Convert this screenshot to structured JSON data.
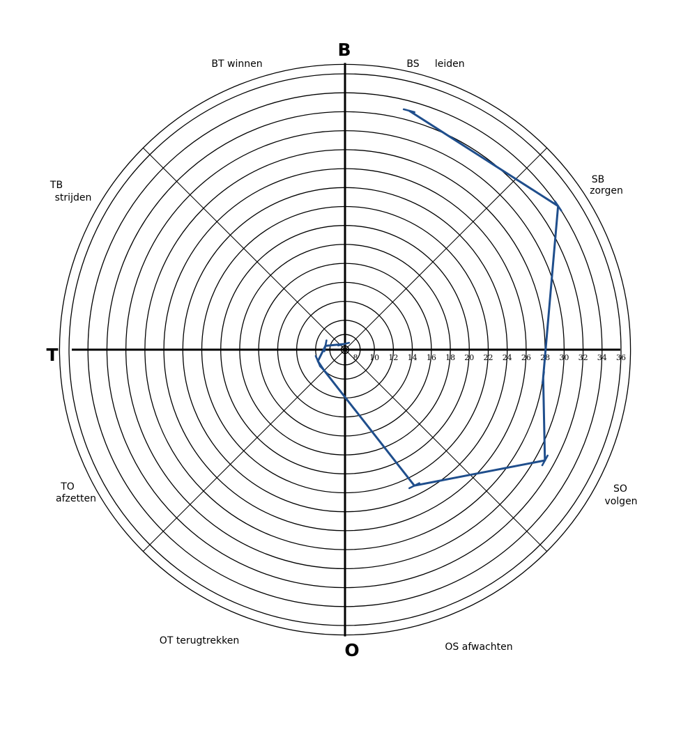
{
  "chart_data": {
    "type": "radar",
    "poles": {
      "top": "B",
      "left": "T",
      "bottom": "O"
    },
    "octant_labels": [
      {
        "id": "BT",
        "lines": [
          "BT winnen"
        ]
      },
      {
        "id": "BS",
        "lines": [
          "BS     leiden"
        ]
      },
      {
        "id": "SB",
        "lines": [
          "SB",
          "zorgen"
        ]
      },
      {
        "id": "SO",
        "lines": [
          "SO",
          "volgen"
        ]
      },
      {
        "id": "OS",
        "lines": [
          "OS afwachten"
        ]
      },
      {
        "id": "OT",
        "lines": [
          "OT terugtrekken"
        ]
      },
      {
        "id": "TO",
        "lines": [
          "TO",
          "afzetten"
        ]
      },
      {
        "id": "TB",
        "lines": [
          "TB",
          "strijden"
        ]
      }
    ],
    "radial_ticks": [
      "8",
      "10",
      "12",
      "14",
      "16",
      "18",
      "20",
      "22",
      "24",
      "26",
      "28",
      "30",
      "32",
      "34",
      "36"
    ],
    "rlim": [
      6,
      37
    ],
    "ring_values": [
      7.3,
      8.5,
      10,
      12,
      14,
      16,
      18,
      20,
      22,
      24,
      26,
      28,
      30,
      32,
      34,
      36
    ],
    "grid": true,
    "series": [
      {
        "color": "#1f4e8c",
        "points": [
          {
            "angle_deg": 75,
            "value": 33
          },
          {
            "angle_deg": 34,
            "value": 34
          },
          {
            "angle_deg": 352,
            "value": 28
          },
          {
            "angle_deg": 331,
            "value": 31
          },
          {
            "angle_deg": 297,
            "value": 23
          },
          {
            "angle_deg": 224,
            "value": 10
          },
          {
            "angle_deg": 203,
            "value": 10
          },
          {
            "angle_deg": 169,
            "value": 9
          },
          {
            "angle_deg": 104,
            "value": 7.5
          }
        ]
      }
    ]
  }
}
